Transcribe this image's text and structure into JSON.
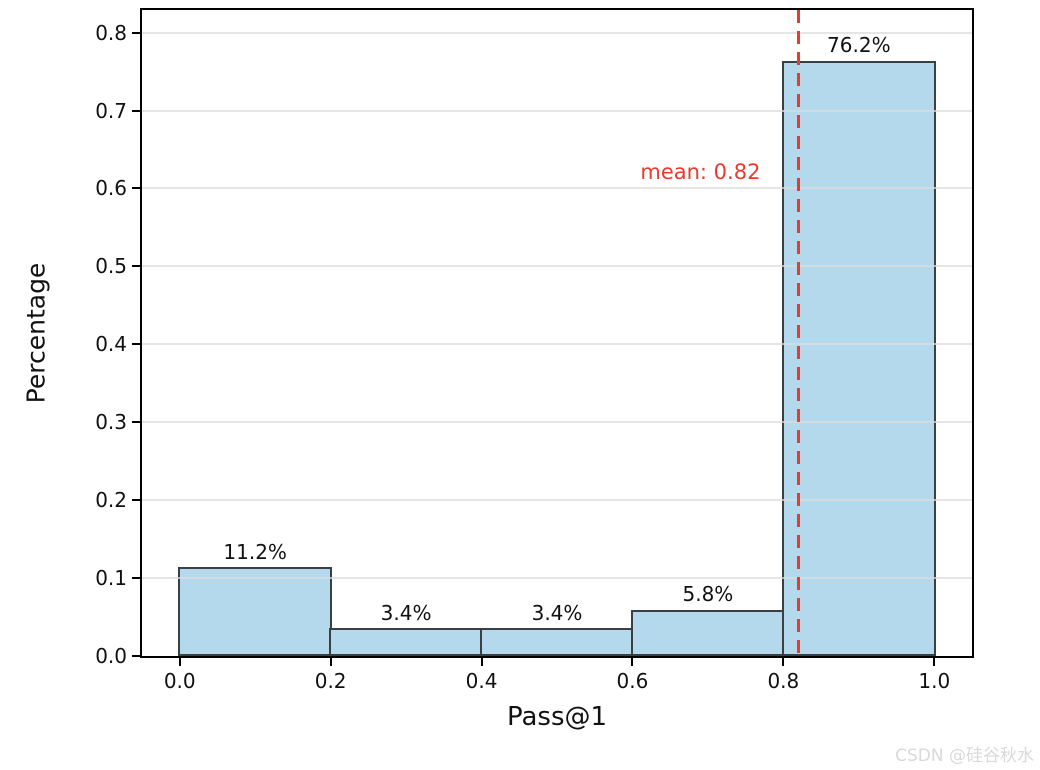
{
  "watermark": "CSDN @硅谷秋水",
  "colors": {
    "bar_fill": "#b5d9ec",
    "bar_edge": "#3a3f44",
    "mean_line": "#e93b2d",
    "grid": "rgba(220,220,220,0.75)",
    "spine": "#000000",
    "text": "#111111",
    "watermark": "#d9d9d9"
  },
  "chart_data": {
    "type": "bar",
    "title": "",
    "xlabel": "Pass@1",
    "ylabel": "Percentage",
    "bins": [
      [
        0.0,
        0.2
      ],
      [
        0.2,
        0.4
      ],
      [
        0.4,
        0.6
      ],
      [
        0.6,
        0.8
      ],
      [
        0.8,
        1.0
      ]
    ],
    "values": [
      0.112,
      0.034,
      0.034,
      0.058,
      0.762
    ],
    "bar_labels": [
      "11.2%",
      "3.4%",
      "3.4%",
      "5.8%",
      "76.2%"
    ],
    "x_ticks": [
      0.0,
      0.2,
      0.4,
      0.6,
      0.8,
      1.0
    ],
    "x_tick_labels": [
      "0.0",
      "0.2",
      "0.4",
      "0.6",
      "0.8",
      "1.0"
    ],
    "y_ticks": [
      0.0,
      0.1,
      0.2,
      0.3,
      0.4,
      0.5,
      0.6,
      0.7,
      0.8
    ],
    "y_tick_labels": [
      "0.0",
      "0.1",
      "0.2",
      "0.3",
      "0.4",
      "0.5",
      "0.6",
      "0.7",
      "0.8"
    ],
    "xlim": [
      -0.05,
      1.05
    ],
    "ylim": [
      0,
      0.829
    ],
    "grid": true,
    "legend": null,
    "mean": {
      "value": 0.82,
      "label": "mean: 0.82"
    }
  }
}
